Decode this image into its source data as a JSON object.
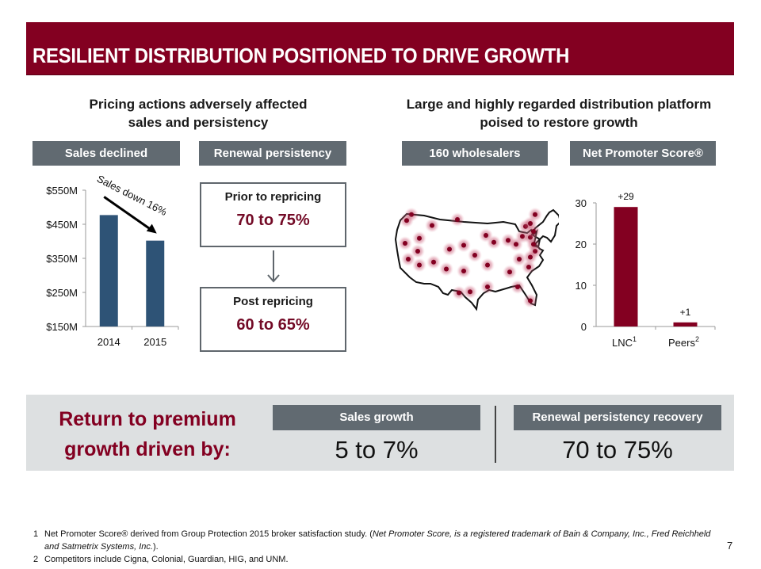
{
  "title": "RESILIENT DISTRIBUTION POSITIONED TO DRIVE GROWTH",
  "left_section": {
    "heading_line1": "Pricing actions adversely affected",
    "heading_line2": "sales and persistency",
    "sales_label": "Sales declined",
    "renewal_label": "Renewal persistency",
    "prior_box": {
      "label": "Prior to repricing",
      "value": "70 to 75%"
    },
    "post_box": {
      "label": "Post repricing",
      "value": "60 to 65%"
    }
  },
  "right_section": {
    "heading_line1": "Large and highly regarded distribution platform",
    "heading_line2": "poised to restore growth",
    "wholesalers_label": "160 wholesalers",
    "nps_label": "Net Promoter Score®"
  },
  "bottom": {
    "heading_line1": "Return to premium",
    "heading_line2": "growth driven by:",
    "sales_growth_label": "Sales growth",
    "sales_growth_value": "5 to 7%",
    "renewal_label": "Renewal persistency recovery",
    "renewal_value": "70 to 75%"
  },
  "footnotes": {
    "fn1_num": "1",
    "fn1_text": "Net Promoter Score® derived from Group Protection 2015 broker satisfaction study. (",
    "fn1_italic": "Net Promoter Score, is a registered trademark of Bain & Company, Inc., Fred Reichheld and Satmetrix Systems, Inc.",
    "fn1_end": ").",
    "fn2_num": "2",
    "fn2_text": "Competitors include Cigna, Colonial, Guardian, HIG, and UNM."
  },
  "page_number": "7",
  "colors": {
    "brand": "#830021",
    "bar_blue": "#2e5376",
    "label_gray": "#616a71",
    "band_gray": "#dde0e1"
  },
  "chart_data": [
    {
      "type": "bar",
      "title": "Sales declined",
      "categories": [
        "2014",
        "2015"
      ],
      "values": [
        477,
        402
      ],
      "ylim": [
        150,
        550
      ],
      "yticks": [
        150,
        250,
        350,
        450,
        550
      ],
      "ytick_labels": [
        "$150M",
        "$250M",
        "$350M",
        "$450M",
        "$550M"
      ],
      "annotation": "Sales down 16%",
      "xlabel": "",
      "ylabel": "",
      "grid": false
    },
    {
      "type": "bar",
      "title": "Net Promoter Score®",
      "categories": [
        "LNC",
        "Peers"
      ],
      "category_superscripts": [
        "1",
        "2"
      ],
      "values": [
        29,
        1
      ],
      "data_labels": [
        "+29",
        "+1"
      ],
      "ylim": [
        0,
        30
      ],
      "yticks": [
        0,
        10,
        20,
        30
      ],
      "xlabel": "",
      "ylabel": "",
      "grid": false
    }
  ],
  "map": {
    "label": "US wholesaler locations",
    "points": [
      [
        0.09,
        0.07
      ],
      [
        0.06,
        0.13
      ],
      [
        0.22,
        0.18
      ],
      [
        0.38,
        0.12
      ],
      [
        0.14,
        0.31
      ],
      [
        0.05,
        0.36
      ],
      [
        0.13,
        0.44
      ],
      [
        0.07,
        0.52
      ],
      [
        0.14,
        0.58
      ],
      [
        0.23,
        0.55
      ],
      [
        0.33,
        0.42
      ],
      [
        0.42,
        0.38
      ],
      [
        0.49,
        0.48
      ],
      [
        0.31,
        0.62
      ],
      [
        0.42,
        0.64
      ],
      [
        0.57,
        0.58
      ],
      [
        0.56,
        0.28
      ],
      [
        0.61,
        0.35
      ],
      [
        0.7,
        0.33
      ],
      [
        0.75,
        0.37
      ],
      [
        0.79,
        0.29
      ],
      [
        0.84,
        0.3
      ],
      [
        0.86,
        0.24
      ],
      [
        0.81,
        0.19
      ],
      [
        0.84,
        0.16
      ],
      [
        0.87,
        0.44
      ],
      [
        0.84,
        0.5
      ],
      [
        0.77,
        0.52
      ],
      [
        0.83,
        0.6
      ],
      [
        0.71,
        0.65
      ],
      [
        0.57,
        0.8
      ],
      [
        0.39,
        0.86
      ],
      [
        0.46,
        0.85
      ],
      [
        0.76,
        0.8
      ],
      [
        0.84,
        0.94
      ],
      [
        0.87,
        0.07
      ],
      [
        0.86,
        0.37
      ]
    ]
  }
}
